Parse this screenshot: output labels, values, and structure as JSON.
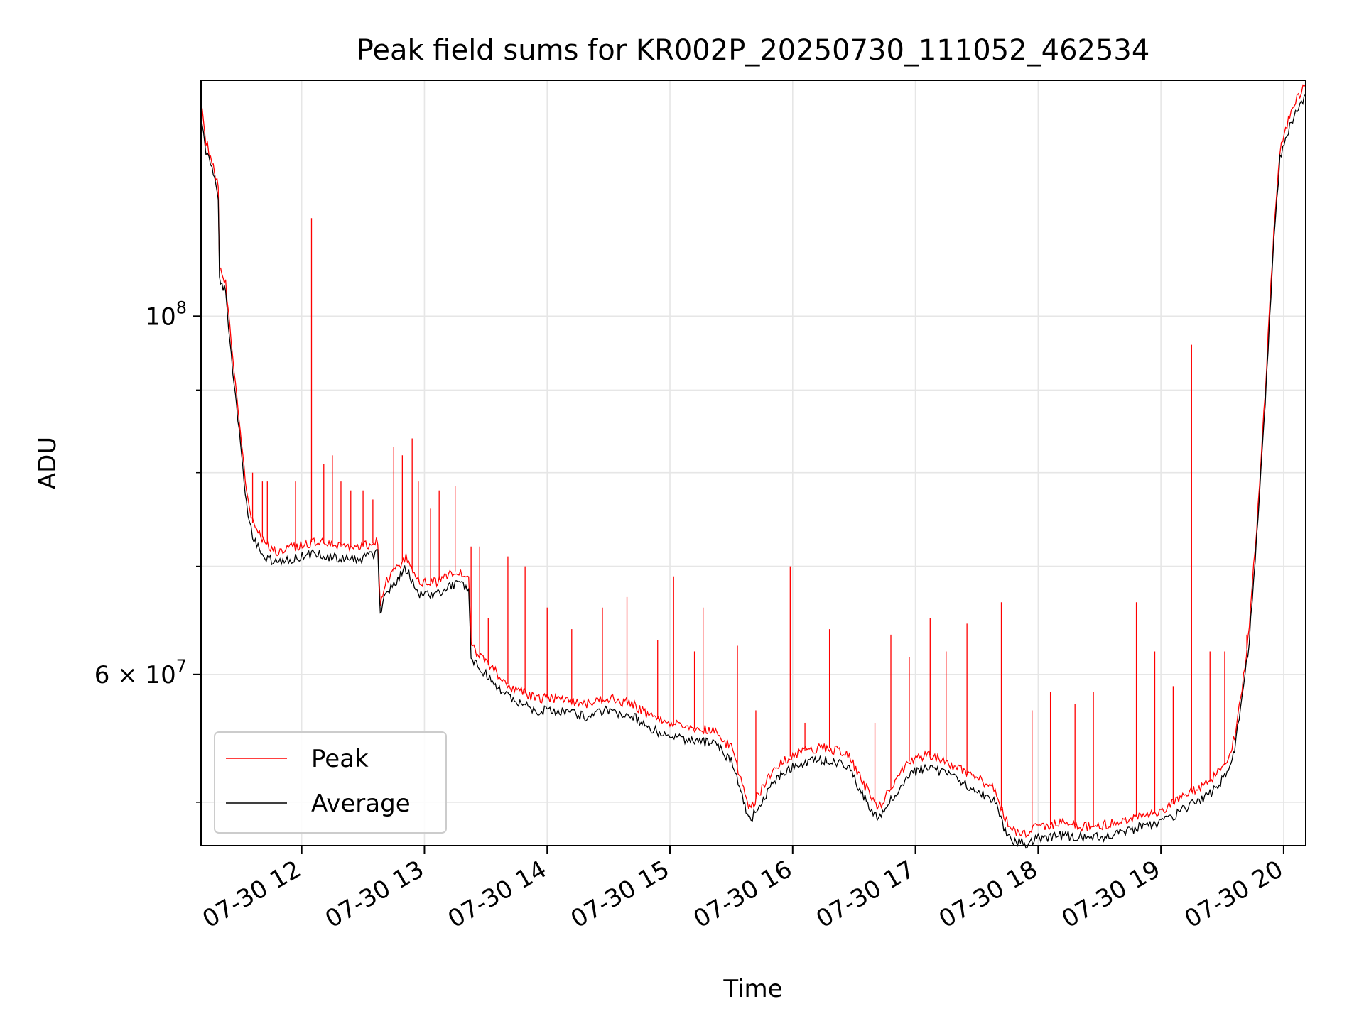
{
  "chart_data": {
    "type": "line",
    "title": "Peak field sums for KR002P_20250730_111052_462534",
    "xlabel": "Time",
    "ylabel": "ADU",
    "yscale": "log",
    "grid": true,
    "legend_position": "lower-left",
    "x_range": [
      "2025-07-30T11:11",
      "2025-07-30T20:10"
    ],
    "ylim": [
      47000000,
      140000000
    ],
    "x_tick_labels": [
      "07-30 12",
      "07-30 13",
      "07-30 14",
      "07-30 15",
      "07-30 16",
      "07-30 17",
      "07-30 18",
      "07-30 19",
      "07-30 20"
    ],
    "x_ticks_hours": [
      12,
      13,
      14,
      15,
      16,
      17,
      18,
      19,
      20
    ],
    "y_major_ticks": [
      {
        "value": 100000000,
        "base": "10",
        "exp": "8"
      },
      {
        "value": 60000000,
        "mant": "6",
        "times": "×",
        "base": "10",
        "exp": "7"
      }
    ],
    "y_minor_ticks": [
      50000000,
      70000000,
      80000000,
      90000000
    ],
    "series": [
      {
        "name": "Peak",
        "color": "#ff0000",
        "x_hours": [
          11.18,
          11.22,
          11.27,
          11.32,
          11.33,
          11.38,
          11.45,
          11.5,
          11.55,
          11.6,
          11.7,
          11.8,
          11.95,
          12.1,
          12.3,
          12.5,
          12.62,
          12.64,
          12.68,
          12.75,
          12.85,
          12.95,
          13.1,
          13.25,
          13.36,
          13.38,
          13.5,
          13.7,
          13.9,
          14.1,
          14.3,
          14.5,
          14.7,
          14.85,
          15.0,
          15.2,
          15.35,
          15.5,
          15.6,
          15.65,
          15.75,
          15.85,
          16.0,
          16.15,
          16.3,
          16.45,
          16.6,
          16.7,
          16.8,
          16.95,
          17.1,
          17.25,
          17.45,
          17.65,
          17.72,
          17.8,
          17.9,
          18.0,
          18.2,
          18.4,
          18.6,
          18.8,
          19.0,
          19.2,
          19.4,
          19.55,
          19.6,
          19.65,
          19.72,
          19.78,
          19.85,
          19.92,
          19.97,
          20.05,
          20.12,
          20.18
        ],
        "values": [
          136000000,
          128000000,
          125000000,
          120000000,
          107000000,
          105000000,
          92000000,
          85000000,
          78000000,
          74500000,
          72500000,
          71500000,
          72000000,
          72500000,
          72000000,
          72000000,
          72500000,
          66500000,
          68500000,
          69500000,
          71000000,
          68500000,
          68500000,
          69500000,
          69000000,
          62500000,
          61000000,
          59000000,
          58000000,
          58000000,
          57500000,
          58000000,
          57500000,
          56500000,
          56000000,
          55500000,
          55500000,
          54000000,
          51000000,
          49500000,
          51000000,
          52500000,
          53500000,
          54000000,
          54000000,
          53500000,
          51000000,
          49500000,
          51000000,
          53000000,
          53500000,
          53000000,
          52000000,
          51000000,
          49000000,
          48000000,
          47800000,
          48300000,
          48500000,
          48300000,
          48500000,
          49000000,
          49300000,
          50500000,
          51500000,
          53000000,
          55000000,
          58000000,
          64000000,
          74000000,
          90000000,
          113000000,
          127000000,
          133000000,
          137000000,
          139000000
        ],
        "spikes": [
          {
            "x": 11.5,
            "y": 85000000
          },
          {
            "x": 11.6,
            "y": 80000000
          },
          {
            "x": 11.68,
            "y": 79000000
          },
          {
            "x": 11.72,
            "y": 79000000
          },
          {
            "x": 11.95,
            "y": 79000000
          },
          {
            "x": 12.08,
            "y": 115000000
          },
          {
            "x": 12.18,
            "y": 81000000
          },
          {
            "x": 12.25,
            "y": 82000000
          },
          {
            "x": 12.32,
            "y": 79000000
          },
          {
            "x": 12.4,
            "y": 78000000
          },
          {
            "x": 12.5,
            "y": 78000000
          },
          {
            "x": 12.58,
            "y": 77000000
          },
          {
            "x": 12.75,
            "y": 83000000
          },
          {
            "x": 12.82,
            "y": 82000000
          },
          {
            "x": 12.9,
            "y": 84000000
          },
          {
            "x": 12.95,
            "y": 79000000
          },
          {
            "x": 13.05,
            "y": 76000000
          },
          {
            "x": 13.12,
            "y": 78000000
          },
          {
            "x": 13.25,
            "y": 78500000
          },
          {
            "x": 13.38,
            "y": 72000000
          },
          {
            "x": 13.45,
            "y": 72000000
          },
          {
            "x": 13.52,
            "y": 65000000
          },
          {
            "x": 13.68,
            "y": 71000000
          },
          {
            "x": 13.82,
            "y": 70000000
          },
          {
            "x": 14.0,
            "y": 66000000
          },
          {
            "x": 14.2,
            "y": 64000000
          },
          {
            "x": 14.45,
            "y": 66000000
          },
          {
            "x": 14.65,
            "y": 67000000
          },
          {
            "x": 14.9,
            "y": 63000000
          },
          {
            "x": 15.03,
            "y": 69000000
          },
          {
            "x": 15.2,
            "y": 62000000
          },
          {
            "x": 15.27,
            "y": 66000000
          },
          {
            "x": 15.55,
            "y": 62500000
          },
          {
            "x": 15.7,
            "y": 57000000
          },
          {
            "x": 15.98,
            "y": 70000000
          },
          {
            "x": 16.1,
            "y": 56000000
          },
          {
            "x": 16.3,
            "y": 64000000
          },
          {
            "x": 16.67,
            "y": 56000000
          },
          {
            "x": 16.8,
            "y": 63500000
          },
          {
            "x": 16.95,
            "y": 61500000
          },
          {
            "x": 17.12,
            "y": 65000000
          },
          {
            "x": 17.25,
            "y": 62000000
          },
          {
            "x": 17.42,
            "y": 64500000
          },
          {
            "x": 17.7,
            "y": 66500000
          },
          {
            "x": 17.95,
            "y": 57000000
          },
          {
            "x": 18.1,
            "y": 58500000
          },
          {
            "x": 18.3,
            "y": 57500000
          },
          {
            "x": 18.45,
            "y": 58500000
          },
          {
            "x": 18.8,
            "y": 66500000
          },
          {
            "x": 18.95,
            "y": 62000000
          },
          {
            "x": 19.1,
            "y": 59000000
          },
          {
            "x": 19.25,
            "y": 96000000
          },
          {
            "x": 19.4,
            "y": 62000000
          },
          {
            "x": 19.52,
            "y": 62000000
          },
          {
            "x": 19.7,
            "y": 63500000
          }
        ]
      },
      {
        "name": "Average",
        "color": "#000000",
        "x_hours": [
          11.18,
          11.22,
          11.27,
          11.32,
          11.33,
          11.38,
          11.45,
          11.5,
          11.55,
          11.6,
          11.7,
          11.8,
          11.95,
          12.1,
          12.3,
          12.5,
          12.62,
          12.64,
          12.68,
          12.75,
          12.85,
          12.95,
          13.1,
          13.25,
          13.36,
          13.38,
          13.5,
          13.7,
          13.9,
          14.1,
          14.3,
          14.5,
          14.7,
          14.85,
          15.0,
          15.2,
          15.35,
          15.5,
          15.6,
          15.65,
          15.75,
          15.85,
          16.0,
          16.15,
          16.3,
          16.45,
          16.6,
          16.7,
          16.8,
          16.95,
          17.1,
          17.25,
          17.45,
          17.65,
          17.72,
          17.8,
          17.9,
          18.0,
          18.2,
          18.4,
          18.6,
          18.8,
          19.0,
          19.2,
          19.4,
          19.55,
          19.6,
          19.65,
          19.72,
          19.78,
          19.85,
          19.92,
          19.97,
          20.05,
          20.12,
          20.18
        ],
        "values": [
          134000000,
          126500000,
          123500000,
          118500000,
          105500000,
          103500000,
          90500000,
          83500000,
          76500000,
          73000000,
          71000000,
          70200000,
          70800000,
          71300000,
          70800000,
          70800000,
          71300000,
          65500000,
          67300000,
          68300000,
          69800000,
          67300000,
          67300000,
          68300000,
          67800000,
          61300000,
          60000000,
          58000000,
          57000000,
          57000000,
          56500000,
          57000000,
          56500000,
          55500000,
          55000000,
          54500000,
          54500000,
          53000000,
          50100000,
          48700000,
          50100000,
          51600000,
          52600000,
          53100000,
          53100000,
          52600000,
          50100000,
          48700000,
          50100000,
          52100000,
          52600000,
          52100000,
          51100000,
          50100000,
          48200000,
          47300000,
          47100000,
          47500000,
          47700000,
          47500000,
          47700000,
          48200000,
          48500000,
          49600000,
          50600000,
          52100000,
          54000000,
          57000000,
          63000000,
          73000000,
          88500000,
          111000000,
          125000000,
          131000000,
          135000000,
          137000000
        ]
      }
    ]
  }
}
